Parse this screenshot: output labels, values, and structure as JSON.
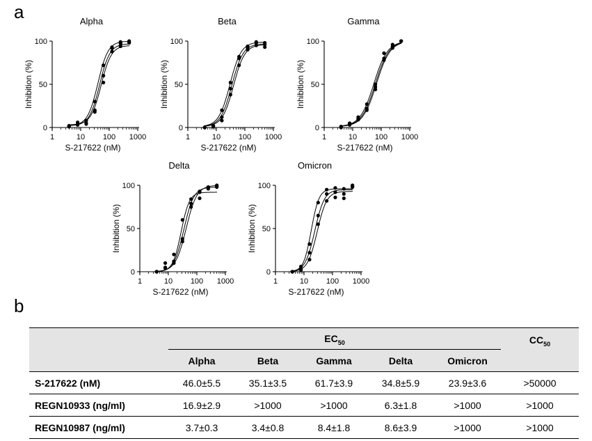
{
  "panel_a_label": "a",
  "panel_b_label": "b",
  "chart_data": [
    {
      "type": "scatter",
      "title": "Alpha",
      "xlabel": "S-217622 (nM)",
      "ylabel": "Inhibition (%)",
      "xscale": "log",
      "xlim": [
        1,
        1000
      ],
      "ylim": [
        0,
        100
      ],
      "xticks": [
        "1",
        "10",
        "100",
        "1000"
      ],
      "yticks": [
        "0",
        "50",
        "100"
      ],
      "series": [
        {
          "ec50": 40,
          "hill": 2.4,
          "top": 100,
          "bottom": 2,
          "x": [
            3.9,
            7.8,
            15.6,
            31.3,
            62.5,
            125,
            250,
            500
          ],
          "y": [
            2,
            6,
            8,
            30,
            72,
            93,
            99,
            100
          ]
        },
        {
          "ec50": 46,
          "hill": 2.4,
          "top": 97,
          "bottom": 2,
          "x": [
            3.9,
            7.8,
            15.6,
            31.3,
            62.5,
            125,
            250,
            500
          ],
          "y": [
            1,
            4,
            5,
            20,
            60,
            92,
            97,
            98
          ]
        },
        {
          "ec50": 52,
          "hill": 2.4,
          "top": 95,
          "bottom": 3,
          "x": [
            3.9,
            7.8,
            15.6,
            31.3,
            62.5,
            125,
            250,
            500
          ],
          "y": [
            1,
            3,
            4,
            18,
            52,
            88,
            94,
            99
          ]
        }
      ]
    },
    {
      "type": "scatter",
      "title": "Beta",
      "xlabel": "S-217622 (nM)",
      "ylabel": "Inhibition (%)",
      "xscale": "log",
      "xlim": [
        1,
        1000
      ],
      "ylim": [
        0,
        100
      ],
      "xticks": [
        "1",
        "10",
        "100",
        "1000"
      ],
      "yticks": [
        "0",
        "50",
        "100"
      ],
      "series": [
        {
          "ec50": 30,
          "hill": 2.2,
          "top": 99,
          "bottom": 1,
          "x": [
            3.9,
            7.8,
            15.6,
            31.3,
            62.5,
            125,
            250,
            500
          ],
          "y": [
            0,
            2,
            20,
            52,
            82,
            92,
            99,
            98
          ]
        },
        {
          "ec50": 35,
          "hill": 2.2,
          "top": 97,
          "bottom": 1,
          "x": [
            3.9,
            7.8,
            15.6,
            31.3,
            62.5,
            125,
            250,
            500
          ],
          "y": [
            0,
            2,
            12,
            45,
            80,
            94,
            98,
            96
          ]
        },
        {
          "ec50": 40,
          "hill": 2.2,
          "top": 96,
          "bottom": 1,
          "x": [
            3.9,
            7.8,
            15.6,
            31.3,
            62.5,
            125,
            250,
            500
          ],
          "y": [
            0,
            1,
            8,
            38,
            72,
            90,
            95,
            93
          ]
        }
      ]
    },
    {
      "type": "scatter",
      "title": "Gamma",
      "xlabel": "S-217622 (nM)",
      "ylabel": "Inhibition (%)",
      "xscale": "log",
      "xlim": [
        1,
        1000
      ],
      "ylim": [
        0,
        100
      ],
      "xticks": [
        "1",
        "10",
        "100",
        "1000"
      ],
      "yticks": [
        "0",
        "50",
        "100"
      ],
      "series": [
        {
          "ec50": 55,
          "hill": 1.8,
          "top": 100,
          "bottom": 1,
          "x": [
            3.9,
            7.8,
            15.6,
            31.3,
            62.5,
            125,
            250,
            500
          ],
          "y": [
            1,
            5,
            12,
            27,
            50,
            86,
            96,
            100
          ]
        },
        {
          "ec50": 62,
          "hill": 1.8,
          "top": 100,
          "bottom": 1,
          "x": [
            3.9,
            7.8,
            15.6,
            31.3,
            62.5,
            125,
            250,
            500
          ],
          "y": [
            1,
            4,
            10,
            22,
            47,
            80,
            94,
            100
          ]
        },
        {
          "ec50": 68,
          "hill": 1.8,
          "top": 100,
          "bottom": 1,
          "x": [
            3.9,
            7.8,
            15.6,
            31.3,
            62.5,
            125,
            250,
            500
          ],
          "y": [
            0,
            3,
            9,
            20,
            44,
            78,
            92,
            100
          ]
        }
      ]
    },
    {
      "type": "scatter",
      "title": "Delta",
      "xlabel": "S-217622 (nM)",
      "ylabel": "Inhibition (%)",
      "xscale": "log",
      "xlim": [
        1,
        1000
      ],
      "ylim": [
        0,
        100
      ],
      "xticks": [
        "1",
        "10",
        "100",
        "1000"
      ],
      "yticks": [
        "0",
        "50",
        "100"
      ],
      "series": [
        {
          "ec50": 28,
          "hill": 3.0,
          "top": 92,
          "bottom": 0,
          "x": [
            3.9,
            7.8,
            15.6,
            31.3,
            62.5,
            125,
            250,
            500
          ],
          "y": [
            0,
            10,
            20,
            60,
            84,
            92,
            96,
            100
          ]
        },
        {
          "ec50": 35,
          "hill": 2.5,
          "top": 98,
          "bottom": 0,
          "x": [
            3.9,
            7.8,
            15.6,
            31.3,
            62.5,
            125,
            250,
            500
          ],
          "y": [
            0,
            5,
            12,
            38,
            79,
            93,
            98,
            99
          ]
        },
        {
          "ec50": 42,
          "hill": 2.3,
          "top": 100,
          "bottom": 0,
          "x": [
            3.9,
            7.8,
            15.6,
            31.3,
            62.5,
            125,
            250,
            500
          ],
          "y": [
            0,
            4,
            10,
            35,
            75,
            85,
            97,
            98
          ]
        }
      ]
    },
    {
      "type": "scatter",
      "title": "Omicron",
      "xlabel": "S-217622 (nM)",
      "ylabel": "Inhibition (%)",
      "xscale": "log",
      "xlim": [
        1,
        1000
      ],
      "ylim": [
        0,
        100
      ],
      "xticks": [
        "1",
        "10",
        "100",
        "1000"
      ],
      "yticks": [
        "0",
        "50",
        "100"
      ],
      "series": [
        {
          "ec50": 18,
          "hill": 3.2,
          "top": 96,
          "bottom": 0,
          "x": [
            3.9,
            7.8,
            15.6,
            31.3,
            62.5,
            125,
            250,
            500
          ],
          "y": [
            0,
            6,
            32,
            80,
            95,
            97,
            96,
            100
          ]
        },
        {
          "ec50": 24,
          "hill": 2.6,
          "top": 95,
          "bottom": 0,
          "x": [
            3.9,
            7.8,
            15.6,
            31.3,
            62.5,
            125,
            250,
            500
          ],
          "y": [
            0,
            3,
            22,
            65,
            90,
            92,
            90,
            99
          ]
        },
        {
          "ec50": 29,
          "hill": 2.6,
          "top": 93,
          "bottom": 0,
          "x": [
            3.9,
            7.8,
            15.6,
            31.3,
            62.5,
            125,
            250,
            500
          ],
          "y": [
            0,
            2,
            14,
            55,
            82,
            86,
            85,
            98
          ]
        }
      ]
    }
  ],
  "table": {
    "ec50_main": "EC",
    "ec50_sub": "50",
    "cc50_main": "CC",
    "cc50_sub": "50",
    "columns": [
      "Alpha",
      "Beta",
      "Gamma",
      "Delta",
      "Omicron"
    ],
    "rows": [
      {
        "label": "S-217622 (nM)",
        "values": [
          "46.0±5.5",
          "35.1±3.5",
          "61.7±3.9",
          "34.8±5.9",
          "23.9±3.6"
        ],
        "cc50": ">50000"
      },
      {
        "label": "REGN10933 (ng/ml)",
        "values": [
          "16.9±2.9",
          ">1000",
          ">1000",
          "6.3±1.8",
          ">1000"
        ],
        "cc50": ">1000"
      },
      {
        "label": "REGN10987 (ng/ml)",
        "values": [
          "3.7±0.3",
          "3.4±0.8",
          "8.4±1.8",
          "8.6±3.9",
          ">1000"
        ],
        "cc50": ">1000"
      }
    ]
  }
}
